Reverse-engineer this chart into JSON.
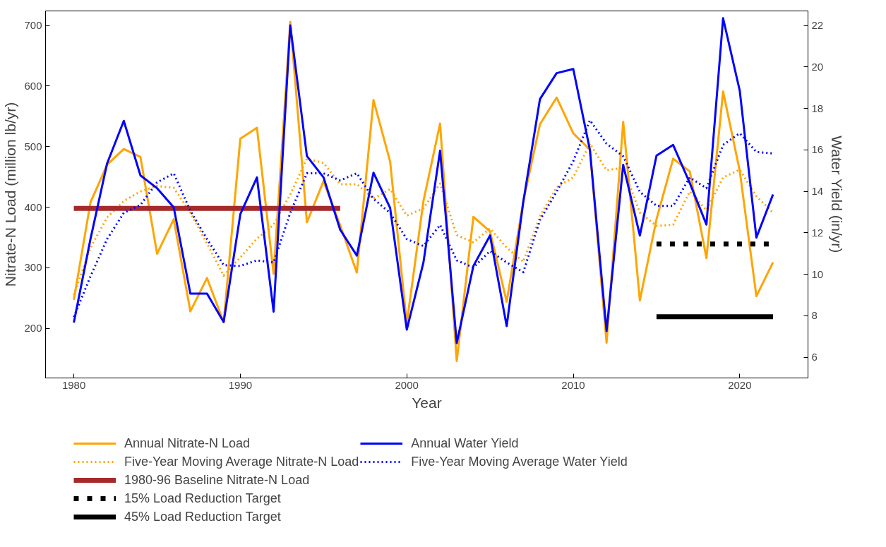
{
  "chart_data": {
    "type": "line",
    "xlabel": "Year",
    "ylabel": "Nitrate-N Load (million lb/yr)",
    "y2label": "Water Yield (in/yr)",
    "x": [
      1980,
      1981,
      1982,
      1983,
      1984,
      1985,
      1986,
      1987,
      1988,
      1989,
      1990,
      1991,
      1992,
      1993,
      1994,
      1995,
      1996,
      1997,
      1998,
      1999,
      2000,
      2001,
      2002,
      2003,
      2004,
      2005,
      2006,
      2007,
      2008,
      2009,
      2010,
      2011,
      2012,
      2013,
      2014,
      2015,
      2016,
      2017,
      2018,
      2019,
      2020,
      2021,
      2022
    ],
    "series": [
      {
        "name": "Annual Nitrate-N Load",
        "color": "#ffa500",
        "line_style": "solid",
        "values": [
          247,
          408,
          470,
          496,
          483,
          323,
          380,
          228,
          283,
          210,
          513,
          531,
          290,
          706,
          375,
          443,
          370,
          292,
          577,
          475,
          208,
          410,
          538,
          146,
          384,
          360,
          244,
          410,
          537,
          581,
          522,
          495,
          176,
          541,
          246,
          380,
          480,
          459,
          316,
          591,
          460,
          253,
          309
        ]
      },
      {
        "name": "Five-Year Moving Average Nitrate-N Load",
        "color": "#ffa500",
        "line_style": "dotted",
        "values": [
          255,
          333,
          383,
          410,
          426,
          435,
          432,
          391,
          340,
          287,
          317,
          348,
          371,
          421,
          480,
          473,
          438,
          438,
          414,
          430,
          386,
          398,
          439,
          354,
          342,
          365,
          333,
          310,
          385,
          433,
          449,
          505,
          461,
          465,
          391,
          369,
          371,
          426,
          395,
          449,
          462,
          418,
          391
        ]
      },
      {
        "name": "1980-96 Baseline Nitrate-N Load",
        "color": "#a52a2a",
        "line_style": "solid",
        "x": [
          1980,
          1996
        ],
        "values": [
          398,
          398
        ]
      },
      {
        "name": "15% Load Reduction Target",
        "color": "#000000",
        "line_style": "dotted",
        "x": [
          2015,
          2022
        ],
        "values": [
          339,
          339
        ]
      },
      {
        "name": "45% Load Reduction Target",
        "color": "#000000",
        "line_style": "solid",
        "x": [
          2015,
          2022
        ],
        "values": [
          219,
          219
        ]
      },
      {
        "name": "Annual Water Yield",
        "color": "#0000ff",
        "line_style": "solid",
        "axis": "y2",
        "values": [
          7.67,
          11.7,
          15.35,
          17.4,
          14.77,
          14.15,
          13.23,
          9.07,
          9.07,
          7.7,
          12.9,
          14.67,
          8.2,
          22.0,
          15.7,
          14.67,
          12.15,
          10.9,
          14.9,
          13.2,
          7.33,
          10.57,
          15.96,
          6.68,
          10.4,
          11.87,
          7.5,
          13.5,
          18.45,
          19.7,
          19.9,
          16.0,
          7.26,
          15.28,
          11.87,
          15.72,
          16.24,
          14.4,
          12.4,
          22.35,
          18.86,
          11.77,
          13.85
        ]
      },
      {
        "name": "Five-Year Moving Average Water Yield",
        "color": "#0000ff",
        "line_style": "dotted",
        "axis": "y2",
        "values": [
          7.94,
          9.9,
          11.7,
          12.96,
          13.34,
          14.43,
          14.87,
          13.06,
          11.7,
          10.44,
          10.4,
          10.67,
          10.57,
          12.96,
          14.87,
          14.87,
          14.53,
          14.87,
          13.64,
          12.96,
          11.7,
          11.36,
          12.38,
          10.67,
          10.33,
          11.12,
          10.57,
          10.1,
          12.62,
          13.98,
          15.45,
          17.43,
          16.3,
          15.69,
          13.98,
          13.3,
          13.3,
          14.67,
          14.15,
          16.24,
          16.8,
          15.9,
          15.83
        ]
      }
    ],
    "xlim": [
      1978.3,
      2024.1
    ],
    "xticks": [
      1980,
      1990,
      2000,
      2010,
      2020
    ],
    "ylim": [
      118,
      724
    ],
    "yticks": [
      200,
      300,
      400,
      500,
      600,
      700
    ],
    "y2lim": [
      5,
      22.7
    ],
    "y2ticks": [
      6,
      8,
      10,
      12,
      14,
      16,
      18,
      20,
      22
    ],
    "grid": false,
    "legend": "bottom"
  }
}
